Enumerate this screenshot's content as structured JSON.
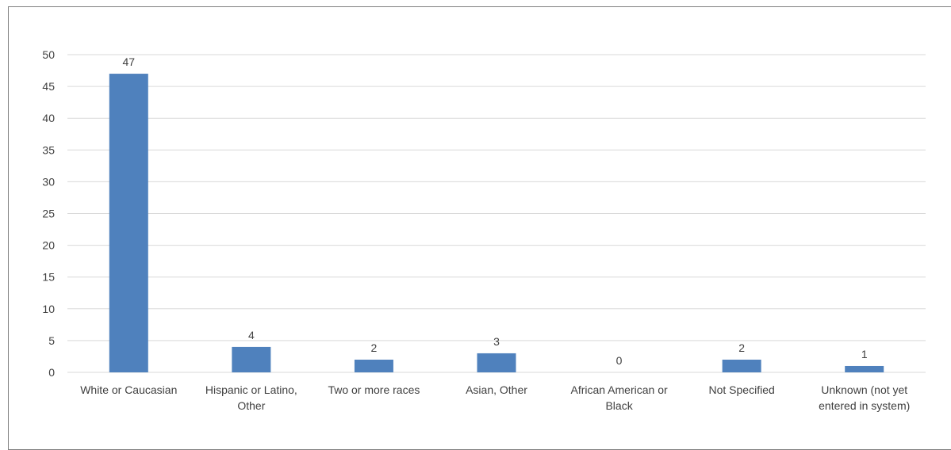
{
  "chart_data": {
    "type": "bar",
    "title": "",
    "categories": [
      [
        "White or Caucasian"
      ],
      [
        "Hispanic or Latino,",
        "Other"
      ],
      [
        "Two or more races"
      ],
      [
        "Asian, Other"
      ],
      [
        "African American or",
        "Black"
      ],
      [
        "Not Specified"
      ],
      [
        "Unknown (not yet",
        "entered in system)"
      ]
    ],
    "values": [
      47,
      4,
      2,
      3,
      0,
      2,
      1
    ],
    "ylim": [
      0,
      50
    ],
    "yticks": [
      0,
      5,
      10,
      15,
      20,
      25,
      30,
      35,
      40,
      45,
      50
    ],
    "xlabel": "",
    "ylabel": "",
    "grid": true,
    "legend": "none",
    "data_labels": true,
    "bar_color": "#4f81bd",
    "grid_color": "#d9d9d9",
    "text_color": "#404040"
  }
}
